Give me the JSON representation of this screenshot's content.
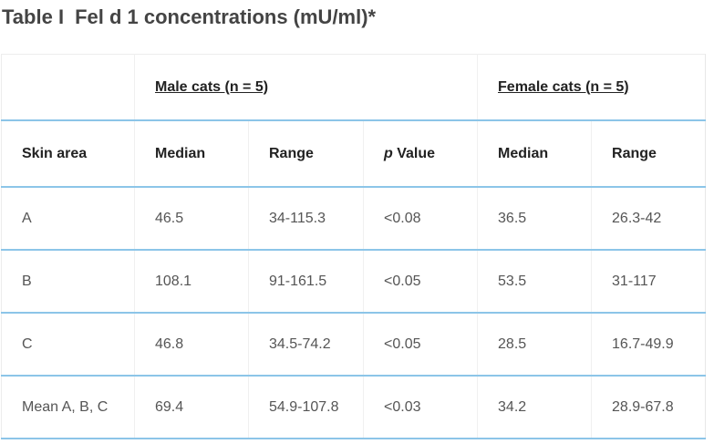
{
  "title": {
    "label": "Table I",
    "text": "Fel d 1 concentrations (mU/ml)*"
  },
  "table": {
    "group_headers": {
      "male": "Male cats (n = 5)",
      "female": "Female cats (n = 5)"
    },
    "column_headers": {
      "skin_area": "Skin area",
      "male_median": "Median",
      "male_range": "Range",
      "p_italic": "p",
      "p_rest": " Value",
      "female_median": "Median",
      "female_range": "Range"
    },
    "rows": [
      {
        "area": "A",
        "male_median": "46.5",
        "male_range": "34-115.3",
        "p": "<0.08",
        "female_median": "36.5",
        "female_range": "26.3-42"
      },
      {
        "area": "B",
        "male_median": "108.1",
        "male_range": "91-161.5",
        "p": "<0.05",
        "female_median": "53.5",
        "female_range": "31-117"
      },
      {
        "area": "C",
        "male_median": "46.8",
        "male_range": "34.5-74.2",
        "p": "<0.05",
        "female_median": "28.5",
        "female_range": "16.7-49.9"
      },
      {
        "area": "Mean A, B, C",
        "male_median": "69.4",
        "male_range": "54.9-107.8",
        "p": "<0.03",
        "female_median": "34.2",
        "female_range": "28.9-67.8"
      }
    ]
  }
}
